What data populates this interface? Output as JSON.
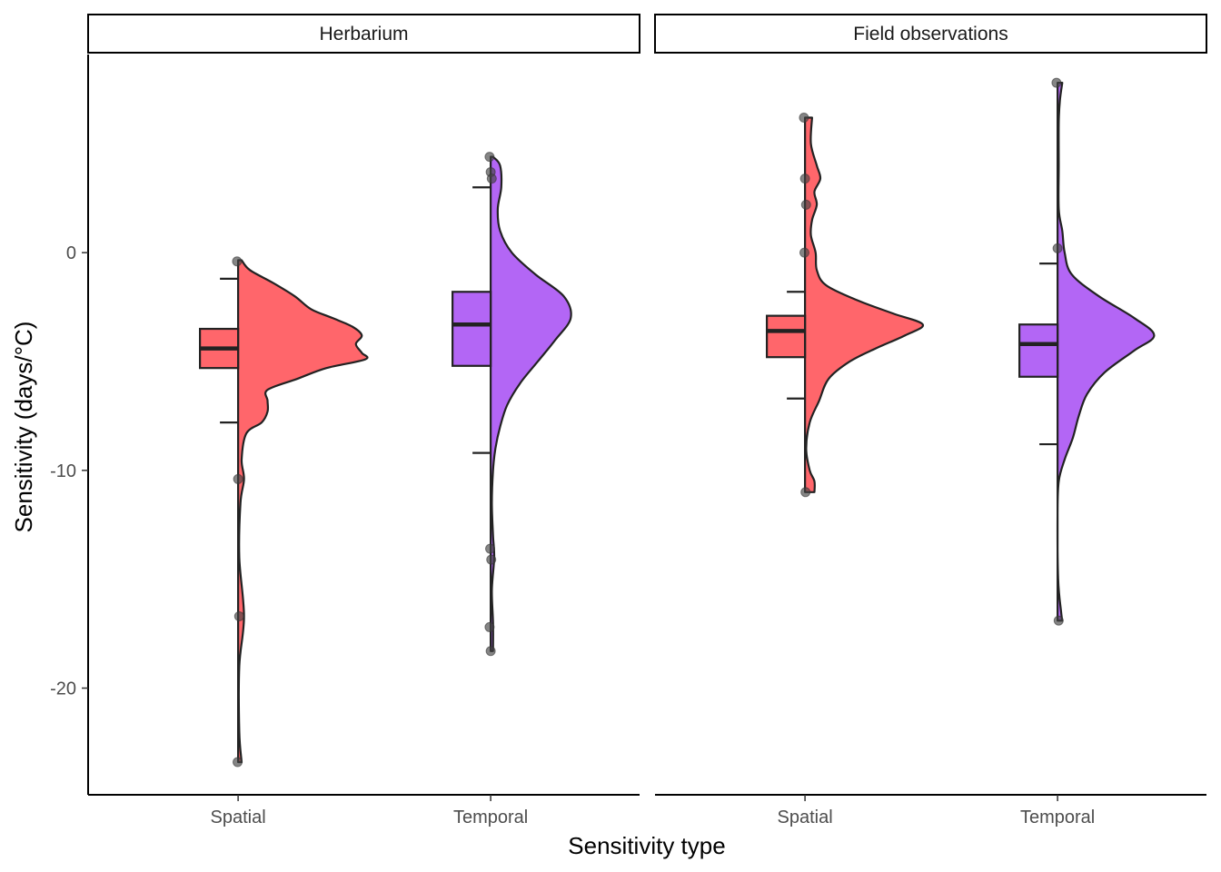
{
  "chart_data": {
    "type": "raincloud",
    "xlabel": "Sensitivity type",
    "ylabel": "Sensitivity (days/°C)",
    "ylim": [
      -24.9,
      9.1
    ],
    "yticks": [
      0,
      -10,
      -20
    ],
    "yticks_labels": [
      "0",
      "-10",
      "-20"
    ],
    "categories": [
      "Spatial",
      "Temporal"
    ],
    "colors": {
      "Spatial": "#ff666b",
      "Temporal": "#b366f5"
    },
    "grid": false,
    "legend": "none",
    "panels": [
      {
        "name": "Herbarium",
        "groups": [
          {
            "category": "Spatial",
            "box": {
              "whisker_low": -7.8,
              "q1": -5.3,
              "median": -4.4,
              "q3": -3.5,
              "whisker_high": -1.2
            },
            "points": [
              -0.4,
              -10.4,
              -16.7,
              -23.4
            ],
            "density": [
              [
                -0.35,
                0.03
              ],
              [
                -0.8,
                0.1
              ],
              [
                -1.4,
                0.3
              ],
              [
                -2.0,
                0.48
              ],
              [
                -2.6,
                0.62
              ],
              [
                -3.0,
                0.8
              ],
              [
                -3.4,
                0.97
              ],
              [
                -3.8,
                1.05
              ],
              [
                -4.2,
                1.0
              ],
              [
                -4.6,
                1.05
              ],
              [
                -4.9,
                1.08
              ],
              [
                -5.3,
                0.75
              ],
              [
                -5.8,
                0.5
              ],
              [
                -6.3,
                0.25
              ],
              [
                -6.8,
                0.25
              ],
              [
                -7.3,
                0.25
              ],
              [
                -7.8,
                0.2
              ],
              [
                -8.3,
                0.07
              ],
              [
                -9.5,
                0.03
              ],
              [
                -10.4,
                0.05
              ],
              [
                -11.5,
                0.02
              ],
              [
                -14.0,
                0.01
              ],
              [
                -16.7,
                0.05
              ],
              [
                -19.0,
                0.01
              ],
              [
                -22.0,
                0.01
              ],
              [
                -23.4,
                0.03
              ]
            ]
          },
          {
            "category": "Temporal",
            "box": {
              "whisker_low": -9.2,
              "q1": -5.2,
              "median": -3.3,
              "q3": -1.8,
              "whisker_high": 3.0
            },
            "points": [
              4.4,
              3.7,
              3.4,
              -13.6,
              -14.1,
              -17.2,
              -18.3
            ],
            "density": [
              [
                4.4,
                0.02
              ],
              [
                4.0,
                0.08
              ],
              [
                3.0,
                0.09
              ],
              [
                2.0,
                0.06
              ],
              [
                1.0,
                0.08
              ],
              [
                0.0,
                0.18
              ],
              [
                -1.0,
                0.38
              ],
              [
                -2.0,
                0.62
              ],
              [
                -3.0,
                0.68
              ],
              [
                -4.0,
                0.55
              ],
              [
                -5.0,
                0.4
              ],
              [
                -6.0,
                0.25
              ],
              [
                -7.0,
                0.14
              ],
              [
                -8.0,
                0.08
              ],
              [
                -9.0,
                0.04
              ],
              [
                -10.0,
                0.02
              ],
              [
                -11.5,
                0.01
              ],
              [
                -13.0,
                0.02
              ],
              [
                -14.0,
                0.03
              ],
              [
                -15.5,
                0.01
              ],
              [
                -17.0,
                0.02
              ],
              [
                -18.3,
                0.02
              ]
            ]
          }
        ]
      },
      {
        "name": "Field observations",
        "groups": [
          {
            "category": "Spatial",
            "box": {
              "whisker_low": -6.7,
              "q1": -4.8,
              "median": -3.6,
              "q3": -2.9,
              "whisker_high": -1.8
            },
            "points": [
              6.2,
              3.4,
              2.2,
              0.0,
              -11.0
            ],
            "density": [
              [
                6.2,
                0.06
              ],
              [
                5.0,
                0.05
              ],
              [
                4.0,
                0.1
              ],
              [
                3.4,
                0.13
              ],
              [
                2.8,
                0.08
              ],
              [
                2.2,
                0.1
              ],
              [
                1.5,
                0.06
              ],
              [
                0.8,
                0.05
              ],
              [
                0.0,
                0.09
              ],
              [
                -0.8,
                0.1
              ],
              [
                -1.5,
                0.18
              ],
              [
                -2.2,
                0.45
              ],
              [
                -2.8,
                0.75
              ],
              [
                -3.3,
                1.0
              ],
              [
                -3.8,
                0.85
              ],
              [
                -4.4,
                0.6
              ],
              [
                -5.0,
                0.38
              ],
              [
                -5.8,
                0.2
              ],
              [
                -6.8,
                0.12
              ],
              [
                -7.8,
                0.04
              ],
              [
                -9.0,
                0.01
              ],
              [
                -10.0,
                0.04
              ],
              [
                -10.5,
                0.08
              ],
              [
                -11.0,
                0.08
              ]
            ]
          },
          {
            "category": "Temporal",
            "box": {
              "whisker_low": -8.8,
              "q1": -5.7,
              "median": -4.2,
              "q3": -3.3,
              "whisker_high": -0.5
            },
            "points": [
              7.8,
              0.2,
              -16.9
            ],
            "density": [
              [
                7.8,
                0.04
              ],
              [
                7.0,
                0.02
              ],
              [
                6.0,
                0.01
              ],
              [
                4.0,
                0.01
              ],
              [
                2.0,
                0.01
              ],
              [
                1.0,
                0.04
              ],
              [
                0.0,
                0.06
              ],
              [
                -1.0,
                0.12
              ],
              [
                -2.0,
                0.35
              ],
              [
                -3.0,
                0.65
              ],
              [
                -3.8,
                0.82
              ],
              [
                -4.5,
                0.65
              ],
              [
                -5.5,
                0.4
              ],
              [
                -6.5,
                0.25
              ],
              [
                -7.5,
                0.18
              ],
              [
                -8.5,
                0.13
              ],
              [
                -9.5,
                0.06
              ],
              [
                -10.5,
                0.01
              ],
              [
                -12.0,
                0.0
              ],
              [
                -15.0,
                0.005
              ],
              [
                -16.5,
                0.03
              ],
              [
                -16.9,
                0.04
              ]
            ]
          }
        ]
      }
    ]
  }
}
